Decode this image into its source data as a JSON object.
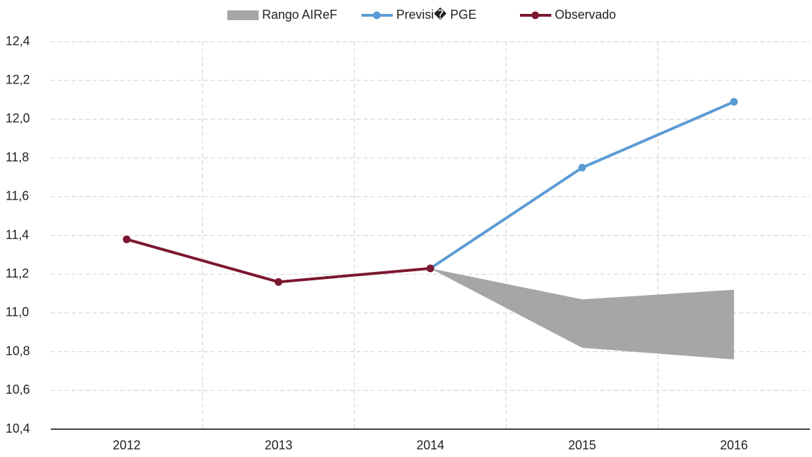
{
  "chart_data": {
    "type": "line",
    "categories": [
      "2012",
      "2013",
      "2014",
      "2015",
      "2016"
    ],
    "series": [
      {
        "name": "Rango AIReF",
        "color": "#a6a6a6",
        "type": "range",
        "low": [
          null,
          null,
          11.23,
          10.82,
          10.76
        ],
        "high": [
          null,
          null,
          11.23,
          11.07,
          11.12
        ]
      },
      {
        "name": "Previsi� PGE",
        "color": "#5b9bd5",
        "values": [
          null,
          null,
          11.23,
          11.75,
          12.09
        ]
      },
      {
        "name": "Observado",
        "color": "#7b1730",
        "values": [
          11.38,
          11.16,
          11.23,
          null,
          null
        ]
      }
    ],
    "ylim": [
      10.4,
      12.4
    ],
    "yticks": [
      {
        "value": 10.4,
        "label": "10,4"
      },
      {
        "value": 10.6,
        "label": "10,6"
      },
      {
        "value": 10.8,
        "label": "10,8"
      },
      {
        "value": 11.0,
        "label": "11,0"
      },
      {
        "value": 11.2,
        "label": "11,2"
      },
      {
        "value": 11.4,
        "label": "11,4"
      },
      {
        "value": 11.6,
        "label": "11,6"
      },
      {
        "value": 11.8,
        "label": "11,8"
      },
      {
        "value": 12.0,
        "label": "12,0"
      },
      {
        "value": 12.2,
        "label": "12,2"
      },
      {
        "value": 12.4,
        "label": "12,4"
      }
    ],
    "grid": true,
    "legend": "top"
  }
}
